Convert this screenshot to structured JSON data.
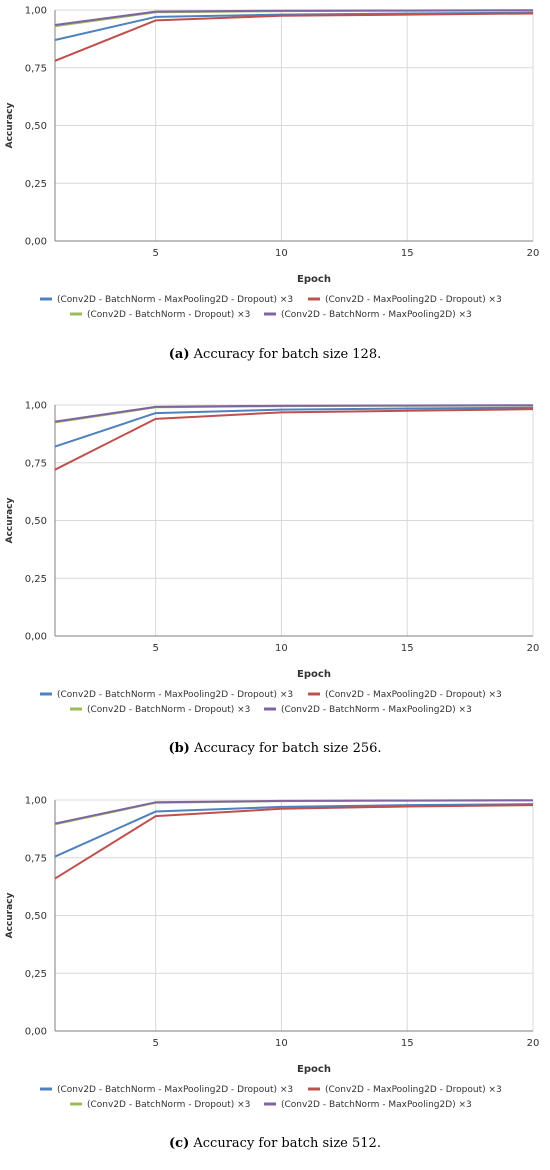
{
  "colors": {
    "blue": "#4f81bd",
    "red": "#c0504d",
    "green": "#9bbb59",
    "purple": "#8064a2",
    "grid": "#d9d9d9",
    "axis": "#7f7f7f",
    "text": "#333333"
  },
  "chart_data": [
    {
      "type": "line",
      "caption_label": "(a)",
      "caption_text": "Accuracy for batch size 128.",
      "xlabel": "Epoch",
      "ylabel": "Accuracy",
      "xlim": [
        1,
        20
      ],
      "ylim": [
        0,
        1
      ],
      "x_ticks": [
        "5",
        "10",
        "15",
        "20"
      ],
      "y_ticks": [
        "0,00",
        "0,25",
        "0,50",
        "0,75",
        "1,00"
      ],
      "x": [
        1,
        5,
        10,
        15,
        20
      ],
      "series": [
        {
          "name": "(Conv2D - BatchNorm - MaxPooling2D - Dropout) ×3",
          "color": "blue",
          "values": [
            0.87,
            0.97,
            0.98,
            0.985,
            0.988
          ]
        },
        {
          "name": "(Conv2D - MaxPooling2D - Dropout) ×3",
          "color": "red",
          "values": [
            0.78,
            0.955,
            0.975,
            0.98,
            0.985
          ]
        },
        {
          "name": "(Conv2D - BatchNorm - Dropout) ×3",
          "color": "green",
          "values": [
            0.93,
            0.99,
            0.995,
            0.997,
            0.998
          ]
        },
        {
          "name": "(Conv2D - BatchNorm - MaxPooling2D) ×3",
          "color": "purple",
          "values": [
            0.935,
            0.993,
            0.997,
            0.998,
            0.999
          ]
        }
      ],
      "grid": true,
      "legend_position": "bottom"
    },
    {
      "type": "line",
      "caption_label": "(b)",
      "caption_text": "Accuracy for batch size 256.",
      "xlabel": "Epoch",
      "ylabel": "Accuracy",
      "xlim": [
        1,
        20
      ],
      "ylim": [
        0,
        1
      ],
      "x_ticks": [
        "5",
        "10",
        "15",
        "20"
      ],
      "y_ticks": [
        "0,00",
        "0,25",
        "0,50",
        "0,75",
        "1,00"
      ],
      "x": [
        1,
        5,
        10,
        15,
        20
      ],
      "series": [
        {
          "name": "(Conv2D - BatchNorm - MaxPooling2D - Dropout) ×3",
          "color": "blue",
          "values": [
            0.82,
            0.965,
            0.98,
            0.985,
            0.988
          ]
        },
        {
          "name": "(Conv2D - MaxPooling2D - Dropout) ×3",
          "color": "red",
          "values": [
            0.72,
            0.94,
            0.968,
            0.975,
            0.982
          ]
        },
        {
          "name": "(Conv2D - BatchNorm - Dropout) ×3",
          "color": "green",
          "values": [
            0.925,
            0.99,
            0.995,
            0.997,
            0.998
          ]
        },
        {
          "name": "(Conv2D - BatchNorm - MaxPooling2D) ×3",
          "color": "purple",
          "values": [
            0.928,
            0.992,
            0.997,
            0.998,
            0.999
          ]
        }
      ],
      "grid": true,
      "legend_position": "bottom"
    },
    {
      "type": "line",
      "caption_label": "(c)",
      "caption_text": "Accuracy for batch size 512.",
      "xlabel": "Epoch",
      "ylabel": "Accuracy",
      "xlim": [
        1,
        20
      ],
      "ylim": [
        0,
        1
      ],
      "x_ticks": [
        "5",
        "10",
        "15",
        "20"
      ],
      "y_ticks": [
        "0,00",
        "0,25",
        "0,50",
        "0,75",
        "1,00"
      ],
      "x": [
        1,
        5,
        10,
        15,
        20
      ],
      "series": [
        {
          "name": "(Conv2D - BatchNorm - MaxPooling2D - Dropout) ×3",
          "color": "blue",
          "values": [
            0.755,
            0.95,
            0.97,
            0.978,
            0.982
          ]
        },
        {
          "name": "(Conv2D - MaxPooling2D - Dropout) ×3",
          "color": "red",
          "values": [
            0.66,
            0.93,
            0.962,
            0.972,
            0.978
          ]
        },
        {
          "name": "(Conv2D - BatchNorm - Dropout) ×3",
          "color": "green",
          "values": [
            0.895,
            0.988,
            0.995,
            0.997,
            0.998
          ]
        },
        {
          "name": "(Conv2D - BatchNorm - MaxPooling2D) ×3",
          "color": "purple",
          "values": [
            0.898,
            0.99,
            0.996,
            0.998,
            0.999
          ]
        }
      ],
      "grid": true,
      "legend_position": "bottom"
    }
  ]
}
